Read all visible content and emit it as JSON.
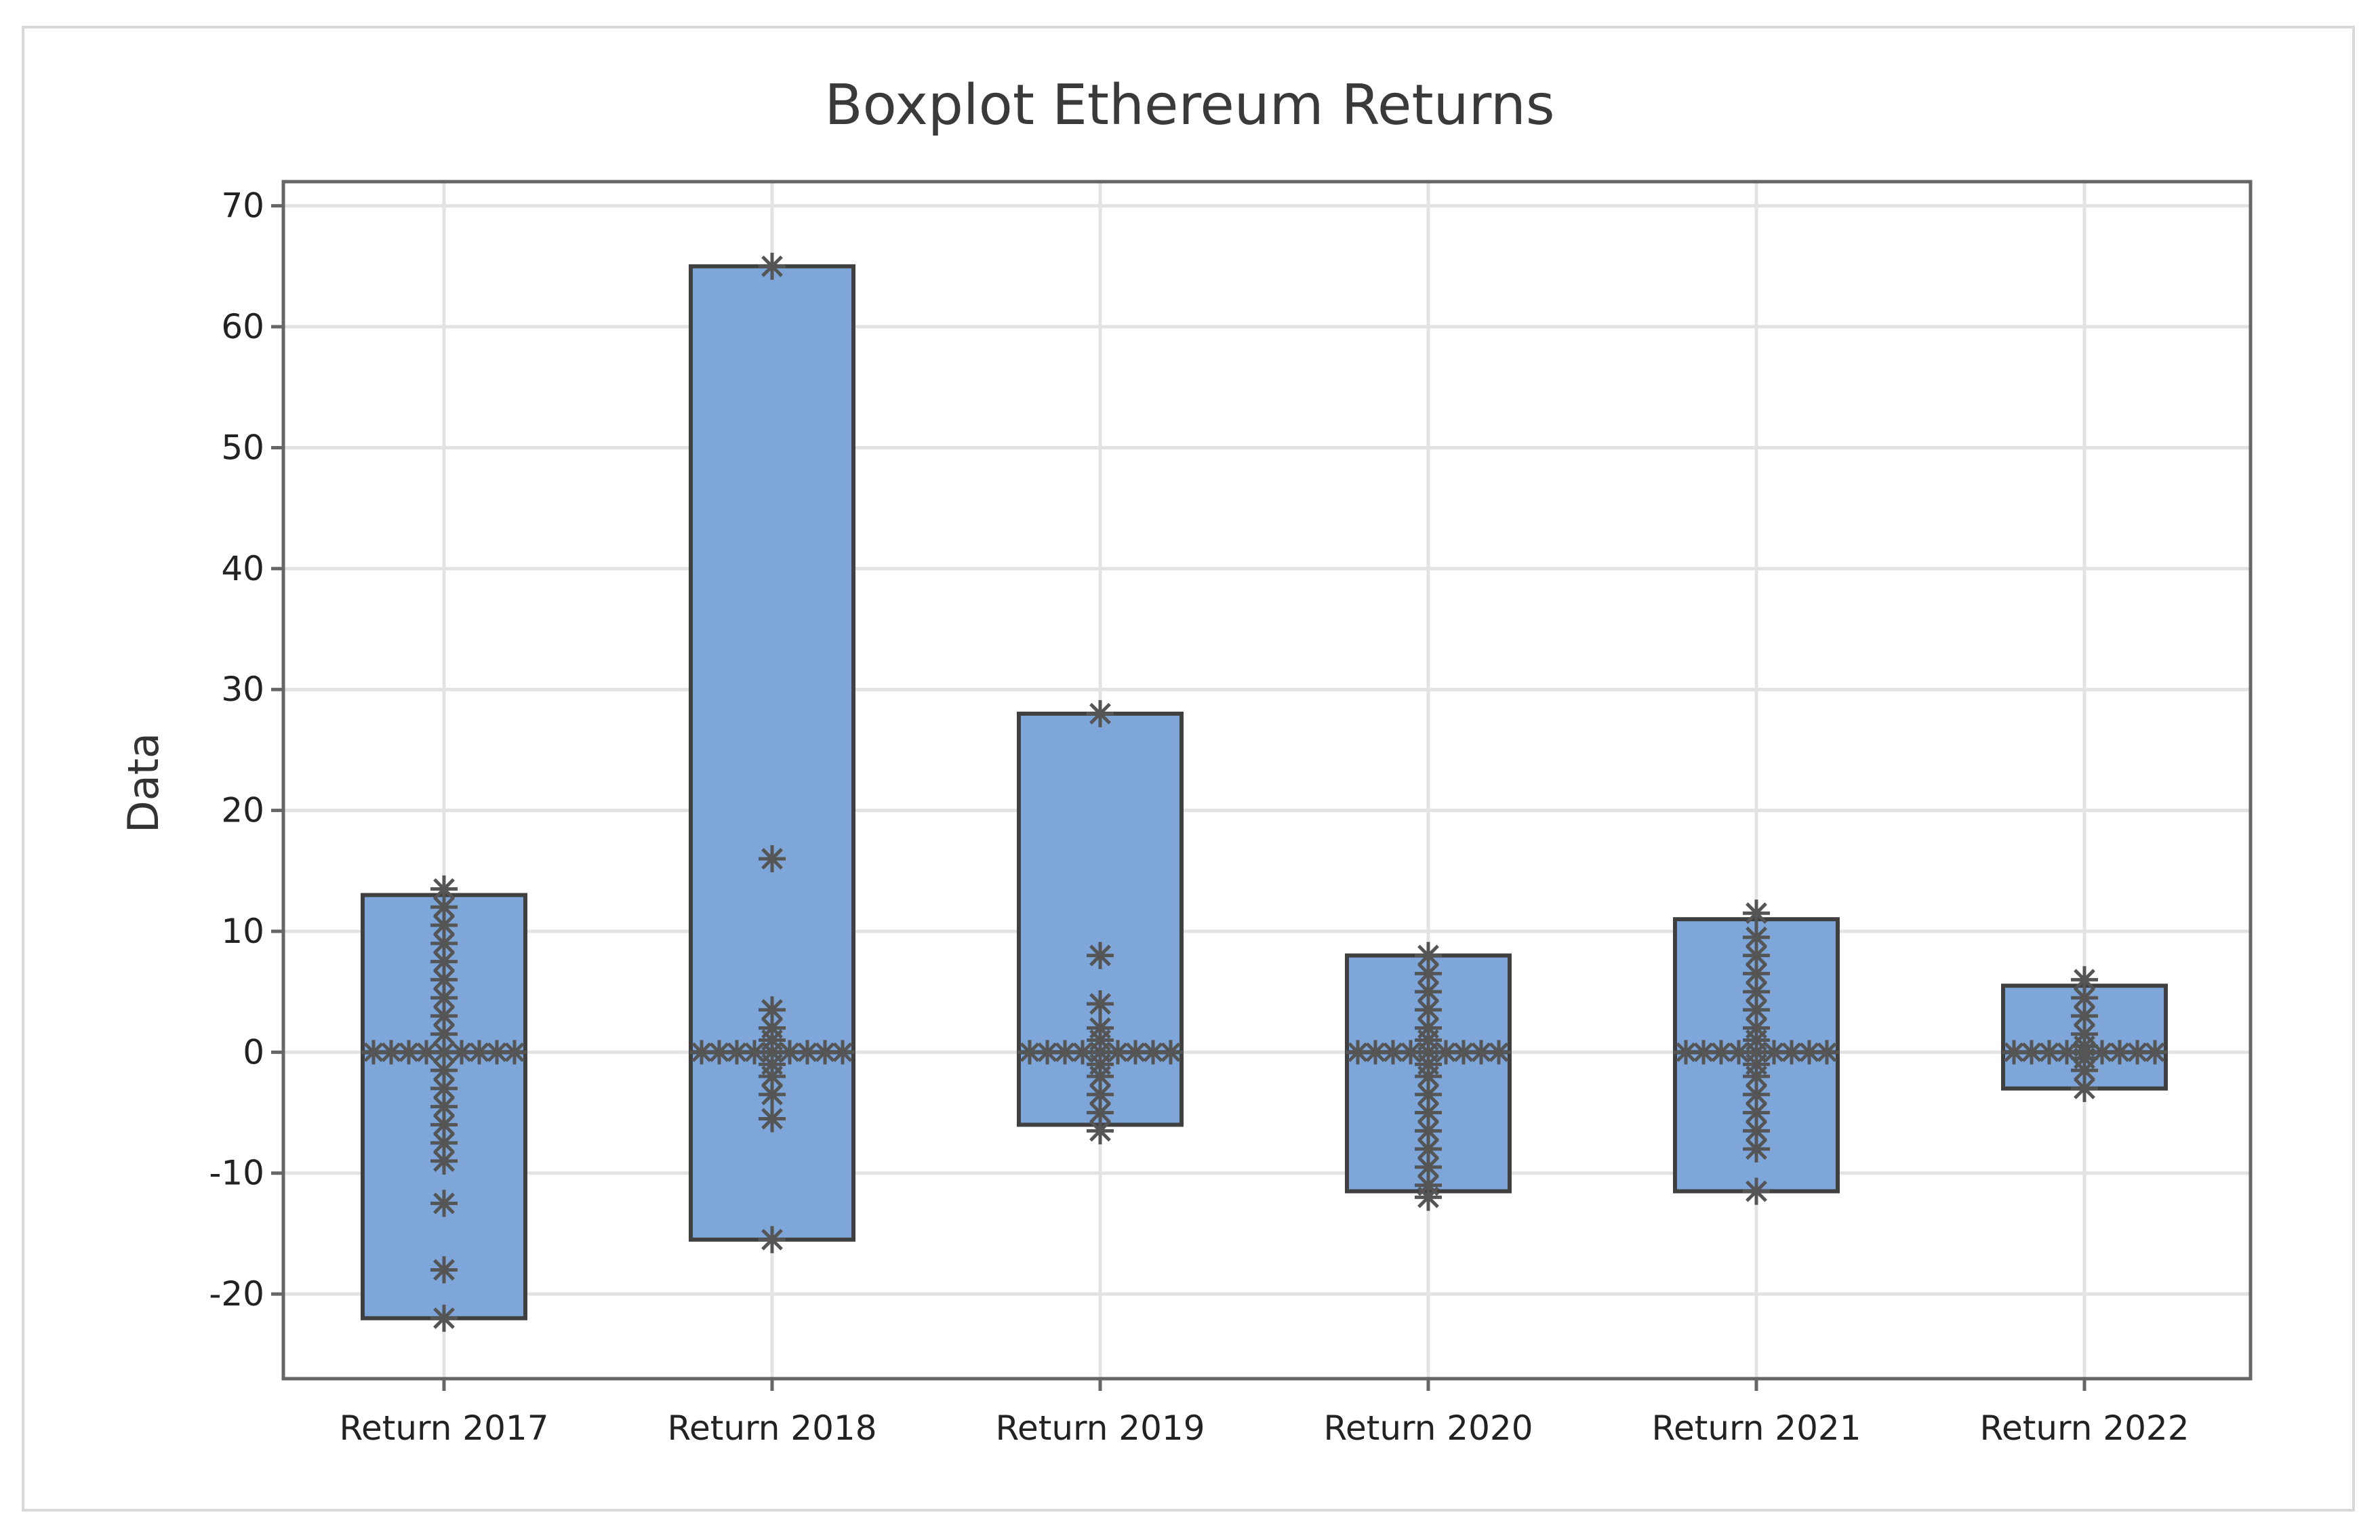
{
  "chart_data": {
    "type": "boxplot",
    "title": "Boxplot Ethereum Returns",
    "xlabel": "",
    "ylabel": "Data",
    "ylim": [
      -27,
      72
    ],
    "yticks": [
      -20,
      -10,
      0,
      10,
      20,
      30,
      40,
      50,
      60,
      70
    ],
    "grid": true,
    "colors": {
      "box": "#7ea6d9",
      "edge": "#404040",
      "points": "#555555",
      "grid": "#e3e3e3"
    },
    "categories": [
      "Return 2017",
      "Return 2018",
      "Return 2019",
      "Return 2020",
      "Return 2021",
      "Return 2022"
    ],
    "boxes": [
      {
        "category": "Return 2017",
        "q1": -22,
        "median": 0,
        "q3": 13,
        "points": [
          13.5,
          12,
          10.5,
          9,
          7.5,
          6,
          4.5,
          3,
          1.5,
          0,
          -1.5,
          -3,
          -4.5,
          -6,
          -7.5,
          -9,
          -12.5,
          -18,
          -22
        ]
      },
      {
        "category": "Return 2018",
        "q1": -15.5,
        "median": 0,
        "q3": 65,
        "points": [
          65,
          16,
          3.5,
          2,
          1,
          0,
          -1,
          -2,
          -3.5,
          -5.5,
          -15.5
        ]
      },
      {
        "category": "Return 2019",
        "q1": -6,
        "median": 0,
        "q3": 28,
        "points": [
          28,
          8,
          4,
          2,
          1,
          0,
          -1,
          -2,
          -3.5,
          -5,
          -6.5
        ]
      },
      {
        "category": "Return 2020",
        "q1": -11.5,
        "median": 0,
        "q3": 8,
        "points": [
          8,
          6.5,
          5,
          3.5,
          2,
          1,
          0,
          -1,
          -2,
          -3.5,
          -5,
          -6.5,
          -8,
          -9.5,
          -11,
          -12
        ]
      },
      {
        "category": "Return 2021",
        "q1": -11.5,
        "median": 0,
        "q3": 11,
        "points": [
          11.5,
          9.5,
          8,
          6.5,
          5,
          3.5,
          2,
          1,
          0,
          -1,
          -2,
          -3.5,
          -5,
          -6.5,
          -8,
          -11.5
        ]
      },
      {
        "category": "Return 2022",
        "q1": -3,
        "median": 0,
        "q3": 5.5,
        "points": [
          6,
          4.5,
          3,
          1.5,
          0.5,
          0,
          -0.5,
          -1.5,
          -3
        ]
      }
    ]
  }
}
